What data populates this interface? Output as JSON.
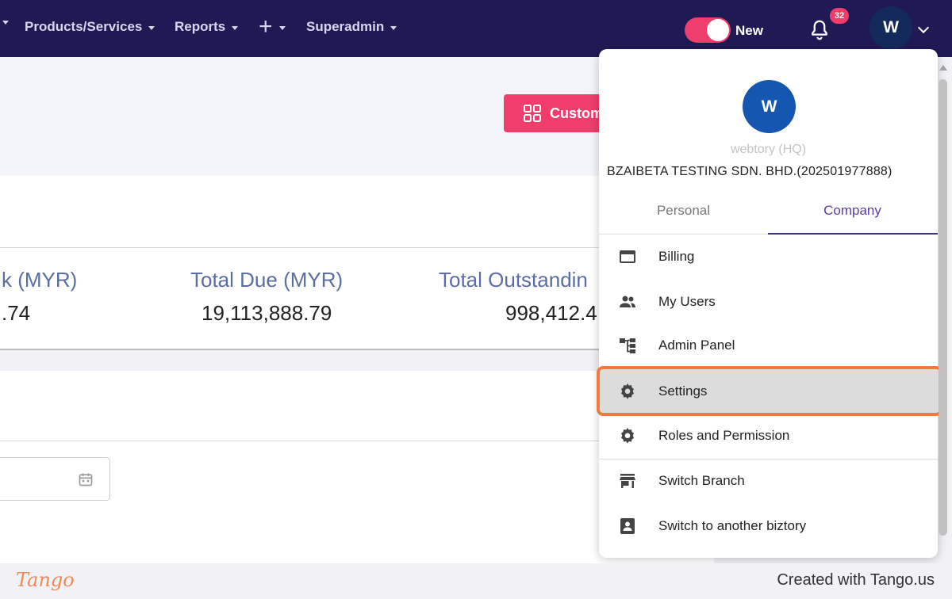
{
  "nav": {
    "items": [
      {
        "label": "Products/Services"
      },
      {
        "label": "Reports"
      },
      {
        "label": "Superadmin"
      }
    ],
    "toggle_label": "New",
    "notification_count": "32",
    "avatar_initial": "W"
  },
  "toolbar": {
    "custom_label": "Custom"
  },
  "stats": [
    {
      "label": "k (MYR)",
      "value": ".74"
    },
    {
      "label": "Total Due (MYR)",
      "value": "19,113,888.79"
    },
    {
      "label": "Total Outstandin",
      "value": "998,412.4"
    }
  ],
  "dropdown": {
    "avatar_initial": "W",
    "user_name": "webtory (HQ)",
    "company_name": "BZAIBETA TESTING SDN. BHD.(202501977888)",
    "tabs": [
      {
        "label": "Personal",
        "active": false
      },
      {
        "label": "Company",
        "active": true
      }
    ],
    "items": [
      {
        "label": "Billing",
        "icon": "credit-card-icon"
      },
      {
        "label": "My Users",
        "icon": "users-icon"
      },
      {
        "label": "Admin Panel",
        "icon": "hierarchy-icon"
      },
      {
        "label": "Settings",
        "icon": "gear-icon",
        "active": true
      },
      {
        "label": "Roles and Permission",
        "icon": "gear-icon"
      },
      {
        "label": "Switch Branch",
        "icon": "store-icon"
      },
      {
        "label": "Switch to another biztory",
        "icon": "contact-card-icon"
      }
    ]
  },
  "footer": {
    "logo": "Tango",
    "credit": "Created with Tango.us"
  },
  "colors": {
    "nav_bg": "#1f1a54",
    "accent": "#ef3e6b",
    "tab_active": "#5a3fa0",
    "highlight": "#f27a3e"
  }
}
